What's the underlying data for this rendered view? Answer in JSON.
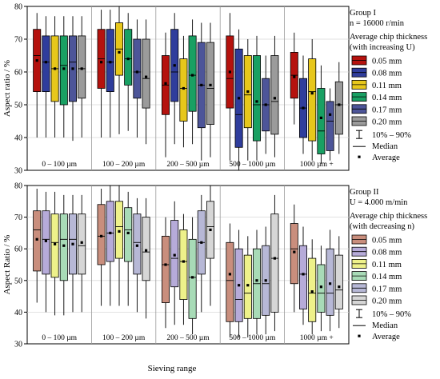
{
  "chart_data": [
    {
      "type": "box",
      "ylabel": "Aspect ratio / %",
      "ylim": [
        30,
        80
      ],
      "yticks": [
        30,
        40,
        50,
        60,
        70,
        80
      ],
      "categories": [
        "0 – 100 µm",
        "100 – 200 µm",
        "200 – 500 µm",
        "500 – 1000 µm",
        "1000 µm +"
      ],
      "group_label": "Group I",
      "condition": "n = 16000 r/min",
      "legend_title": "Average chip thickness (with increasing U)",
      "series": [
        {
          "name": "0.05 mm",
          "color": "#b5120e",
          "boxes": [
            {
              "q1": 54,
              "median": 65,
              "q3": 73,
              "low": 40,
              "high": 78,
              "mean": 63.5
            },
            {
              "q1": 55,
              "median": 64,
              "q3": 73,
              "low": 40,
              "high": 79,
              "mean": 63
            },
            {
              "q1": 47,
              "median": 56,
              "q3": 65,
              "low": 34,
              "high": 72,
              "mean": 56.5
            },
            {
              "q1": 49,
              "median": 58,
              "q3": 71,
              "low": 33,
              "high": 78,
              "mean": 60
            },
            {
              "q1": 52,
              "median": 59,
              "q3": 66,
              "low": 44,
              "high": 72,
              "mean": 58.5
            }
          ]
        },
        {
          "name": "0.08 mm",
          "color": "#2f3d9c",
          "boxes": [
            {
              "q1": 54,
              "median": 63,
              "q3": 71,
              "low": 40,
              "high": 77,
              "mean": 63
            },
            {
              "q1": 54,
              "median": 63,
              "q3": 73,
              "low": 40,
              "high": 79,
              "mean": 63
            },
            {
              "q1": 51,
              "median": 60,
              "q3": 73,
              "low": 38,
              "high": 78,
              "mean": 62
            },
            {
              "q1": 37,
              "median": 47,
              "q3": 67,
              "low": 30,
              "high": 73,
              "mean": 52
            },
            {
              "q1": 40,
              "median": 49,
              "q3": 58,
              "low": 35,
              "high": 65,
              "mean": 49
            }
          ]
        },
        {
          "name": "0.11 mm",
          "color": "#e7c71b",
          "boxes": [
            {
              "q1": 51,
              "median": 61,
              "q3": 71,
              "low": 40,
              "high": 77,
              "mean": 61
            },
            {
              "q1": 59,
              "median": 67,
              "q3": 75,
              "low": 41,
              "high": 80,
              "mean": 66
            },
            {
              "q1": 45,
              "median": 55,
              "q3": 64,
              "low": 37,
              "high": 71,
              "mean": 55
            },
            {
              "q1": 43,
              "median": 53,
              "q3": 65,
              "low": 33,
              "high": 70,
              "mean": 54
            },
            {
              "q1": 39,
              "median": 54,
              "q3": 64,
              "low": 33,
              "high": 70,
              "mean": 53.5
            }
          ]
        },
        {
          "name": "0.14 mm",
          "color": "#19a063",
          "boxes": [
            {
              "q1": 50,
              "median": 62,
              "q3": 71,
              "low": 40,
              "high": 77,
              "mean": 61
            },
            {
              "q1": 56,
              "median": 64,
              "q3": 73,
              "low": 42,
              "high": 78,
              "mean": 64
            },
            {
              "q1": 48,
              "median": 59,
              "q3": 71,
              "low": 38,
              "high": 76,
              "mean": 59
            },
            {
              "q1": 39,
              "median": 50,
              "q3": 65,
              "low": 33,
              "high": 71,
              "mean": 51
            },
            {
              "q1": 35,
              "median": 42,
              "q3": 55,
              "low": 32,
              "high": 62,
              "mean": 46
            }
          ]
        },
        {
          "name": "0.17 mm",
          "color": "#4d5599",
          "boxes": [
            {
              "q1": 51,
              "median": 63,
              "q3": 71,
              "low": 39,
              "high": 77,
              "mean": 61
            },
            {
              "q1": 52,
              "median": 60,
              "q3": 70,
              "low": 40,
              "high": 76,
              "mean": 60
            },
            {
              "q1": 43,
              "median": 56,
              "q3": 69,
              "low": 33,
              "high": 75,
              "mean": 56
            },
            {
              "q1": 42,
              "median": 50,
              "q3": 58,
              "low": 35,
              "high": 65,
              "mean": 50
            },
            {
              "q1": 36,
              "median": 45,
              "q3": 51,
              "low": 33,
              "high": 55,
              "mean": 47
            }
          ]
        },
        {
          "name": "0.20 mm",
          "color": "#9b9b9b",
          "boxes": [
            {
              "q1": 52,
              "median": 61,
              "q3": 71,
              "low": 40,
              "high": 77,
              "mean": 61
            },
            {
              "q1": 49,
              "median": 58,
              "q3": 70,
              "low": 38,
              "high": 76,
              "mean": 58.5
            },
            {
              "q1": 44,
              "median": 55,
              "q3": 69,
              "low": 34,
              "high": 75,
              "mean": 56
            },
            {
              "q1": 41,
              "median": 51,
              "q3": 65,
              "low": 34,
              "high": 71,
              "mean": 52
            },
            {
              "q1": 41,
              "median": 50,
              "q3": 57,
              "low": 35,
              "high": 63,
              "mean": 50
            }
          ]
        }
      ]
    },
    {
      "type": "box",
      "ylabel": "Aspect Ratio / %",
      "xlabel": "Sieving range",
      "ylim": [
        30,
        80
      ],
      "yticks": [
        30,
        40,
        50,
        60,
        70,
        80
      ],
      "categories": [
        "0 – 100 µm",
        "100 – 200 µm",
        "200 – 500 µm",
        "500 – 1000 µm",
        "1000 µm +"
      ],
      "group_label": "Group II",
      "condition": "U = 4.000 m/min",
      "legend_title": "Average chip thickness (with decreasing n)",
      "series": [
        {
          "name": "0.05 mm",
          "color": "#c98e7d",
          "boxes": [
            {
              "q1": 53,
              "median": 66,
              "q3": 72,
              "low": 43,
              "high": 79,
              "mean": 63
            },
            {
              "q1": 55,
              "median": 64,
              "q3": 74,
              "low": 42,
              "high": 79,
              "mean": 64
            },
            {
              "q1": 43,
              "median": 55,
              "q3": 64,
              "low": 35,
              "high": 70,
              "mean": 55
            },
            {
              "q1": 37,
              "median": 50,
              "q3": 62,
              "low": 32,
              "high": 68,
              "mean": 52
            },
            {
              "q1": 49,
              "median": 60,
              "q3": 68,
              "low": 40,
              "high": 74,
              "mean": 59
            }
          ]
        },
        {
          "name": "0.08 mm",
          "color": "#b6abd9",
          "boxes": [
            {
              "q1": 52,
              "median": 63,
              "q3": 72,
              "low": 40,
              "high": 78,
              "mean": 62.5
            },
            {
              "q1": 56,
              "median": 65,
              "q3": 75,
              "low": 42,
              "high": 80,
              "mean": 65
            },
            {
              "q1": 48,
              "median": 57,
              "q3": 69,
              "low": 36,
              "high": 75,
              "mean": 58
            },
            {
              "q1": 37,
              "median": 44,
              "q3": 60,
              "low": 32,
              "high": 66,
              "mean": 48.5
            },
            {
              "q1": 41,
              "median": 52,
              "q3": 61,
              "low": 36,
              "high": 67,
              "mean": 52
            }
          ]
        },
        {
          "name": "0.11 mm",
          "color": "#eef18a",
          "boxes": [
            {
              "q1": 51,
              "median": 62,
              "q3": 71,
              "low": 39,
              "high": 78,
              "mean": 61.5
            },
            {
              "q1": 57,
              "median": 67,
              "q3": 75,
              "low": 42,
              "high": 80,
              "mean": 65.5
            },
            {
              "q1": 44,
              "median": 56,
              "q3": 66,
              "low": 36,
              "high": 71,
              "mean": 56
            },
            {
              "q1": 38,
              "median": 46,
              "q3": 58,
              "low": 32,
              "high": 64,
              "mean": 48.5
            },
            {
              "q1": 37,
              "median": 46,
              "q3": 57,
              "low": 33,
              "high": 63,
              "mean": 46.5
            }
          ]
        },
        {
          "name": "0.14 mm",
          "color": "#a8dbb7",
          "boxes": [
            {
              "q1": 50,
              "median": 63,
              "q3": 71,
              "low": 39,
              "high": 77,
              "mean": 61
            },
            {
              "q1": 56,
              "median": 66,
              "q3": 73,
              "low": 42,
              "high": 78,
              "mean": 65
            },
            {
              "q1": 38,
              "median": 51,
              "q3": 63,
              "low": 33,
              "high": 70,
              "mean": 51
            },
            {
              "q1": 38,
              "median": 49,
              "q3": 60,
              "low": 33,
              "high": 66,
              "mean": 50
            },
            {
              "q1": 40,
              "median": 46,
              "q3": 55,
              "low": 34,
              "high": 61,
              "mean": 48
            }
          ]
        },
        {
          "name": "0.17 mm",
          "color": "#b7b8d6",
          "boxes": [
            {
              "q1": 52,
              "median": 63,
              "q3": 71,
              "low": 40,
              "high": 77,
              "mean": 61.5
            },
            {
              "q1": 52,
              "median": 62,
              "q3": 71,
              "low": 40,
              "high": 76,
              "mean": 61
            },
            {
              "q1": 52,
              "median": 62,
              "q3": 72,
              "low": 40,
              "high": 77,
              "mean": 62
            },
            {
              "q1": 39,
              "median": 49,
              "q3": 61,
              "low": 33,
              "high": 67,
              "mean": 50
            },
            {
              "q1": 39,
              "median": 46,
              "q3": 60,
              "low": 34,
              "high": 66,
              "mean": 49
            }
          ]
        },
        {
          "name": "0.20 mm",
          "color": "#d6d6d6",
          "boxes": [
            {
              "q1": 52,
              "median": 61,
              "q3": 71,
              "low": 40,
              "high": 77,
              "mean": 62
            },
            {
              "q1": 50,
              "median": 59,
              "q3": 70,
              "low": 38,
              "high": 76,
              "mean": 59.5
            },
            {
              "q1": 57,
              "median": 67,
              "q3": 75,
              "low": 42,
              "high": 80,
              "mean": 66
            },
            {
              "q1": 40,
              "median": 57,
              "q3": 71,
              "low": 34,
              "high": 77,
              "mean": 57
            },
            {
              "q1": 41,
              "median": 47,
              "q3": 58,
              "low": 35,
              "high": 64,
              "mean": 48
            }
          ]
        }
      ]
    }
  ],
  "legend_whisker_label": "10% – 90%",
  "legend_median_label": "Median",
  "legend_average_label": "Average"
}
